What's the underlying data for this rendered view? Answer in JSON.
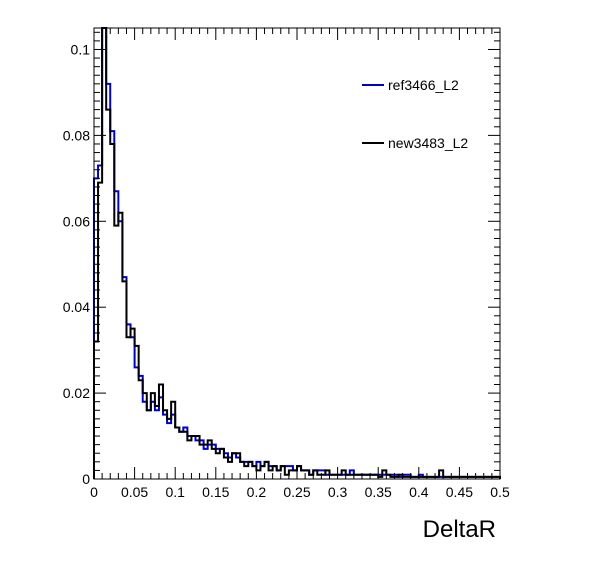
{
  "chart_data": {
    "type": "line",
    "step": true,
    "xlabel": "DeltaR",
    "ylabel": "",
    "xlim": [
      0,
      0.5
    ],
    "ylim": [
      0,
      0.105
    ],
    "bin_width": 0.005,
    "x_ticks": [
      "0",
      "0.05",
      "0.1",
      "0.15",
      "0.2",
      "0.25",
      "0.3",
      "0.35",
      "0.4",
      "0.45",
      "0.5"
    ],
    "x_tick_values": [
      0,
      0.05,
      0.1,
      0.15,
      0.2,
      0.25,
      0.3,
      0.35,
      0.4,
      0.45,
      0.5
    ],
    "y_ticks": [
      "0",
      "0.02",
      "0.04",
      "0.06",
      "0.08",
      "0.1"
    ],
    "y_tick_values": [
      0,
      0.02,
      0.04,
      0.06,
      0.08,
      0.1
    ],
    "legend_position": "top-right",
    "grid": false,
    "series": [
      {
        "name": "ref3466_L2",
        "color": "#0000cc",
        "values": [
          0.07,
          0.073,
          0.105,
          0.092,
          0.081,
          0.067,
          0.06,
          0.047,
          0.036,
          0.033,
          0.026,
          0.024,
          0.018,
          0.016,
          0.018,
          0.016,
          0.019,
          0.015,
          0.013,
          0.015,
          0.012,
          0.011,
          0.012,
          0.01,
          0.01,
          0.009,
          0.009,
          0.007,
          0.008,
          0.008,
          0.007,
          0.007,
          0.006,
          0.005,
          0.006,
          0.005,
          0.004,
          0.004,
          0.004,
          0.003,
          0.004,
          0.003,
          0.004,
          0.003,
          0.003,
          0.002,
          0.003,
          0.003,
          0.003,
          0.002,
          0.003,
          0.002,
          0.002,
          0.001,
          0.002,
          0.002,
          0.002,
          0.001,
          0.001,
          0.001,
          0.001,
          0.001,
          0.001,
          0.002,
          0.001,
          0.001,
          0.001,
          0.001,
          0.001,
          0.001,
          0.001,
          0.001,
          0.001,
          0.001,
          0.001,
          0.0005,
          0.001,
          0.001,
          0.0005,
          0.0005,
          0.001,
          0.0005,
          0.0005,
          0.0005,
          0.0005,
          0.0005,
          0.0005,
          0.0005,
          0.0005,
          0.0005,
          0.0005,
          0.0005,
          0.0005,
          0.0005,
          0.0005,
          0.0005,
          0.0005,
          0.0005,
          0.0005,
          0.0005
        ]
      },
      {
        "name": "new3483_L2",
        "color": "#000000",
        "values": [
          0.032,
          0.069,
          0.105,
          0.086,
          0.078,
          0.059,
          0.062,
          0.046,
          0.033,
          0.035,
          0.031,
          0.023,
          0.02,
          0.016,
          0.02,
          0.017,
          0.022,
          0.016,
          0.014,
          0.018,
          0.012,
          0.011,
          0.011,
          0.009,
          0.01,
          0.01,
          0.008,
          0.008,
          0.009,
          0.007,
          0.006,
          0.007,
          0.005,
          0.004,
          0.006,
          0.006,
          0.004,
          0.003,
          0.004,
          0.003,
          0.002,
          0.003,
          0.004,
          0.002,
          0.003,
          0.002,
          0.003,
          0.001,
          0.002,
          0.002,
          0.003,
          0.002,
          0.002,
          0.001,
          0.002,
          0.001,
          0.001,
          0.002,
          0.001,
          0.001,
          0.001,
          0.002,
          0.001,
          0.001,
          0.001,
          0.001,
          0.001,
          0.001,
          0.001,
          0.001,
          0.0005,
          0.002,
          0.001,
          0.0005,
          0.0005,
          0.001,
          0.0005,
          0.0005,
          0.0005,
          0.0005,
          0.0005,
          0.0005,
          0.0005,
          0.0005,
          0.0005,
          0.002,
          0.0005,
          0.0005,
          0.0005,
          0.0005,
          0.0005,
          0.0005,
          0.0005,
          0.0005,
          0.0005,
          0.0005,
          0.0005,
          0.0005,
          0.0005,
          0.0005
        ]
      }
    ]
  }
}
